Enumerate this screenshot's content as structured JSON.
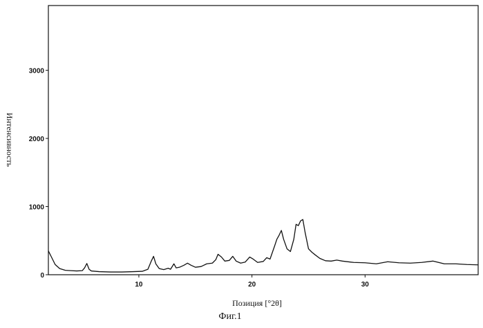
{
  "chart_data": {
    "type": "line",
    "title": "",
    "xlabel": "Позиция [°2θ]",
    "ylabel": "Интенсивность",
    "caption": "Фиг.1",
    "xlim": [
      2,
      40
    ],
    "ylim": [
      0,
      3950
    ],
    "x_ticks": [
      10,
      20,
      30
    ],
    "y_ticks": [
      0,
      1000,
      2000,
      3000
    ],
    "grid": false,
    "line_color": "#111111",
    "series": [
      {
        "values": [
          [
            2.0,
            350
          ],
          [
            2.3,
            250
          ],
          [
            2.6,
            150
          ],
          [
            3.0,
            90
          ],
          [
            3.5,
            65
          ],
          [
            4.0,
            60
          ],
          [
            4.5,
            55
          ],
          [
            5.0,
            60
          ],
          [
            5.2,
            100
          ],
          [
            5.4,
            165
          ],
          [
            5.6,
            80
          ],
          [
            5.8,
            55
          ],
          [
            6.5,
            45
          ],
          [
            7.5,
            40
          ],
          [
            8.5,
            40
          ],
          [
            9.5,
            45
          ],
          [
            10.3,
            50
          ],
          [
            10.8,
            80
          ],
          [
            11.1,
            200
          ],
          [
            11.3,
            270
          ],
          [
            11.5,
            160
          ],
          [
            11.8,
            90
          ],
          [
            12.2,
            75
          ],
          [
            12.6,
            95
          ],
          [
            12.8,
            80
          ],
          [
            13.1,
            160
          ],
          [
            13.3,
            100
          ],
          [
            13.6,
            110
          ],
          [
            14.0,
            140
          ],
          [
            14.3,
            170
          ],
          [
            14.6,
            140
          ],
          [
            15.0,
            110
          ],
          [
            15.5,
            120
          ],
          [
            16.0,
            160
          ],
          [
            16.5,
            170
          ],
          [
            16.8,
            220
          ],
          [
            17.0,
            300
          ],
          [
            17.3,
            260
          ],
          [
            17.6,
            200
          ],
          [
            18.0,
            210
          ],
          [
            18.3,
            270
          ],
          [
            18.6,
            200
          ],
          [
            19.0,
            170
          ],
          [
            19.4,
            185
          ],
          [
            19.8,
            260
          ],
          [
            20.1,
            230
          ],
          [
            20.5,
            180
          ],
          [
            21.0,
            195
          ],
          [
            21.3,
            250
          ],
          [
            21.6,
            230
          ],
          [
            22.0,
            420
          ],
          [
            22.2,
            520
          ],
          [
            22.4,
            580
          ],
          [
            22.6,
            650
          ],
          [
            22.8,
            520
          ],
          [
            23.1,
            380
          ],
          [
            23.4,
            340
          ],
          [
            23.7,
            520
          ],
          [
            23.9,
            740
          ],
          [
            24.1,
            720
          ],
          [
            24.3,
            790
          ],
          [
            24.5,
            810
          ],
          [
            24.7,
            620
          ],
          [
            25.0,
            380
          ],
          [
            25.3,
            330
          ],
          [
            25.6,
            290
          ],
          [
            26.0,
            240
          ],
          [
            26.5,
            205
          ],
          [
            27.0,
            200
          ],
          [
            27.5,
            215
          ],
          [
            28.0,
            200
          ],
          [
            29.0,
            180
          ],
          [
            30.0,
            175
          ],
          [
            31.0,
            160
          ],
          [
            32.0,
            190
          ],
          [
            33.0,
            175
          ],
          [
            34.0,
            170
          ],
          [
            35.0,
            180
          ],
          [
            36.0,
            200
          ],
          [
            37.0,
            160
          ],
          [
            38.0,
            160
          ],
          [
            39.0,
            150
          ],
          [
            40.0,
            145
          ]
        ]
      }
    ]
  }
}
